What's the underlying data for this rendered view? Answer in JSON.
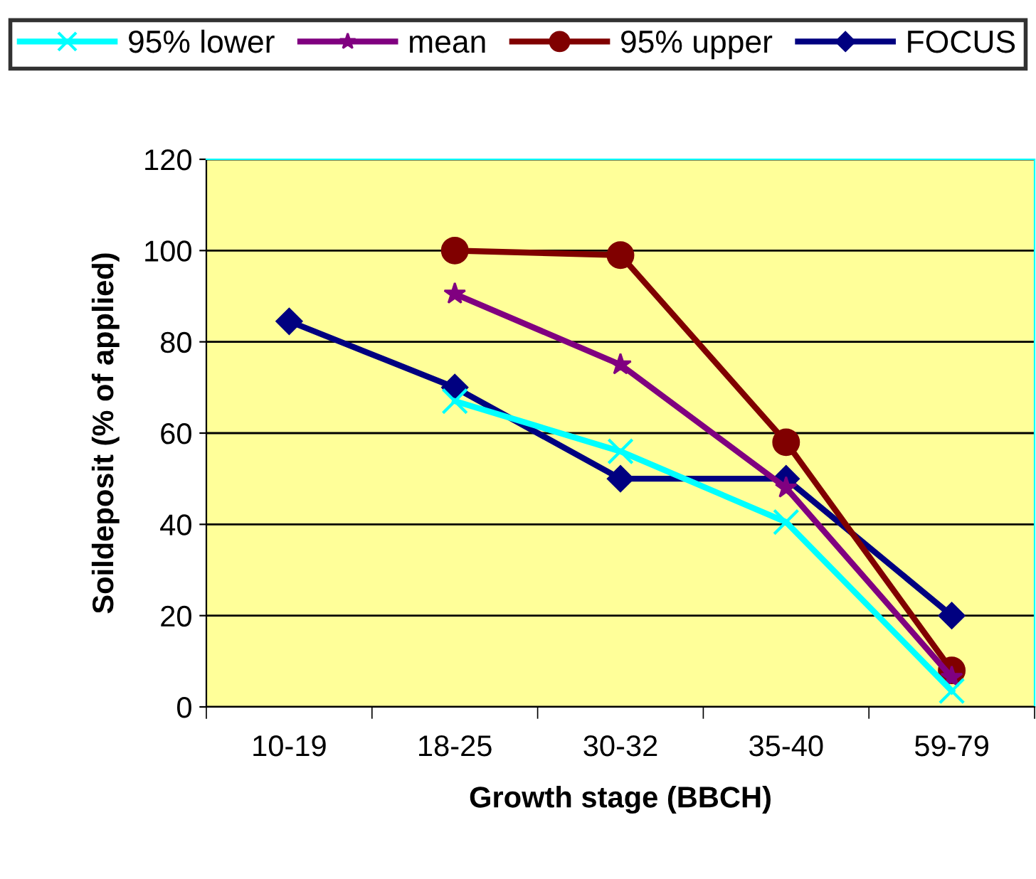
{
  "chart_data": {
    "type": "line",
    "xlabel": "Growth stage (BBCH)",
    "ylabel": "Soildeposit (% of applied)",
    "categories": [
      "10-19",
      "18-25",
      "30-32",
      "35-40",
      "59-79"
    ],
    "ylim": [
      0,
      120
    ],
    "yticks": [
      0,
      20,
      40,
      60,
      80,
      100,
      120
    ],
    "grid": "y",
    "legend": "top",
    "series": [
      {
        "name": "95% lower",
        "color": "#00ffff",
        "marker": "cross",
        "values": [
          null,
          67,
          56,
          40.5,
          3.5
        ]
      },
      {
        "name": "mean",
        "color": "#800080",
        "marker": "star",
        "values": [
          null,
          90.5,
          75,
          48,
          6.5
        ]
      },
      {
        "name": "95% upper",
        "color": "#800000",
        "marker": "circle",
        "values": [
          null,
          100,
          99,
          58,
          8
        ]
      },
      {
        "name": "FOCUS",
        "color": "#000080",
        "marker": "diamond",
        "values": [
          84.5,
          70,
          50,
          50,
          20
        ]
      }
    ]
  }
}
